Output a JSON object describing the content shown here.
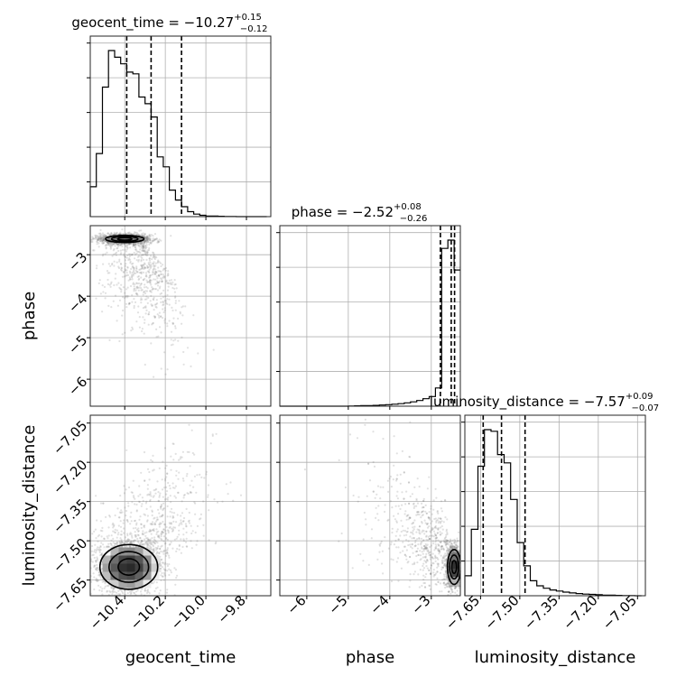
{
  "chart_data": {
    "type": "corner",
    "parameters": [
      "geocent_time",
      "phase",
      "luminosity_distance"
    ],
    "titles": [
      {
        "param": "geocent_time",
        "main": "geocent_time = −10.27",
        "sup": "+0.15",
        "sub": "−0.12"
      },
      {
        "param": "phase",
        "main": "phase = −2.52",
        "sup": "+0.08",
        "sub": "−0.26"
      },
      {
        "param": "luminosity_distance",
        "main": "luminosity_distance = −7.57",
        "sup": "+0.09",
        "sub": "−0.07"
      }
    ],
    "axes": {
      "geocent_time": {
        "range": [
          -10.57,
          -9.68
        ],
        "ticks": [
          -10.4,
          -10.2,
          -10.0,
          -9.8
        ],
        "tick_labels": [
          "−10.4",
          "−10.2",
          "−10.0",
          "−9.8"
        ],
        "quantiles": [
          -10.39,
          -10.27,
          -10.12
        ]
      },
      "phase": {
        "range": [
          -6.65,
          -2.3
        ],
        "ticks": [
          -6,
          -5,
          -4,
          -3
        ],
        "tick_labels": [
          "−6",
          "−5",
          "−4",
          "−3"
        ],
        "quantiles": [
          -2.78,
          -2.52,
          -2.44
        ]
      },
      "luminosity_distance": {
        "range": [
          -7.71,
          -7.02
        ],
        "ticks": [
          -7.65,
          -7.5,
          -7.35,
          -7.2,
          -7.05
        ],
        "tick_labels": [
          "−7.65",
          "−7.50",
          "−7.35",
          "−7.20",
          "−7.05"
        ],
        "quantiles": [
          -7.64,
          -7.57,
          -7.48
        ]
      }
    },
    "hist_1d": {
      "geocent_time": {
        "bin_edges": [
          -10.57,
          -10.54,
          -10.51,
          -10.48,
          -10.45,
          -10.42,
          -10.39,
          -10.36,
          -10.33,
          -10.3,
          -10.27,
          -10.24,
          -10.21,
          -10.18,
          -10.15,
          -10.12,
          -10.09,
          -10.06,
          -10.03,
          -10.0,
          -9.97,
          -9.94,
          -9.91,
          -9.88,
          -9.85,
          -9.82,
          -9.79,
          -9.76,
          -9.73,
          -9.7
        ],
        "counts": [
          0.18,
          0.38,
          0.78,
          1.0,
          0.96,
          0.92,
          0.87,
          0.86,
          0.72,
          0.68,
          0.6,
          0.36,
          0.3,
          0.16,
          0.1,
          0.06,
          0.03,
          0.015,
          0.008,
          0.004,
          0.003,
          0.002,
          0.001,
          0.001,
          0.0,
          0.0,
          0.0,
          0.0,
          0.0
        ]
      },
      "phase": {
        "bin_edges": [
          -6.65,
          -6.5,
          -6.35,
          -6.2,
          -6.05,
          -5.9,
          -5.75,
          -5.6,
          -5.45,
          -5.3,
          -5.15,
          -5.0,
          -4.85,
          -4.7,
          -4.55,
          -4.4,
          -4.25,
          -4.1,
          -3.95,
          -3.8,
          -3.65,
          -3.5,
          -3.35,
          -3.2,
          -3.05,
          -2.9,
          -2.75,
          -2.6,
          -2.45,
          -2.3
        ],
        "counts": [
          0.0,
          0.0,
          0.0,
          0.0,
          0.0,
          0.0,
          0.0,
          0.0,
          0.0,
          0.0,
          0.0,
          0.001,
          0.002,
          0.003,
          0.004,
          0.005,
          0.007,
          0.009,
          0.012,
          0.015,
          0.02,
          0.026,
          0.034,
          0.045,
          0.058,
          0.11,
          0.95,
          1.0,
          0.82
        ]
      },
      "luminosity_distance": {
        "bin_edges": [
          -7.71,
          -7.685,
          -7.66,
          -7.635,
          -7.61,
          -7.585,
          -7.56,
          -7.535,
          -7.51,
          -7.485,
          -7.46,
          -7.435,
          -7.41,
          -7.385,
          -7.36,
          -7.335,
          -7.31,
          -7.285,
          -7.26,
          -7.235,
          -7.21,
          -7.185,
          -7.16,
          -7.135,
          -7.11,
          -7.085,
          -7.06,
          -7.035
        ],
        "counts": [
          0.12,
          0.4,
          0.78,
          1.0,
          0.99,
          0.85,
          0.8,
          0.58,
          0.32,
          0.18,
          0.09,
          0.06,
          0.045,
          0.035,
          0.028,
          0.022,
          0.017,
          0.013,
          0.01,
          0.008,
          0.006,
          0.004,
          0.003,
          0.002,
          0.001,
          0.001,
          0.0
        ]
      }
    }
  }
}
